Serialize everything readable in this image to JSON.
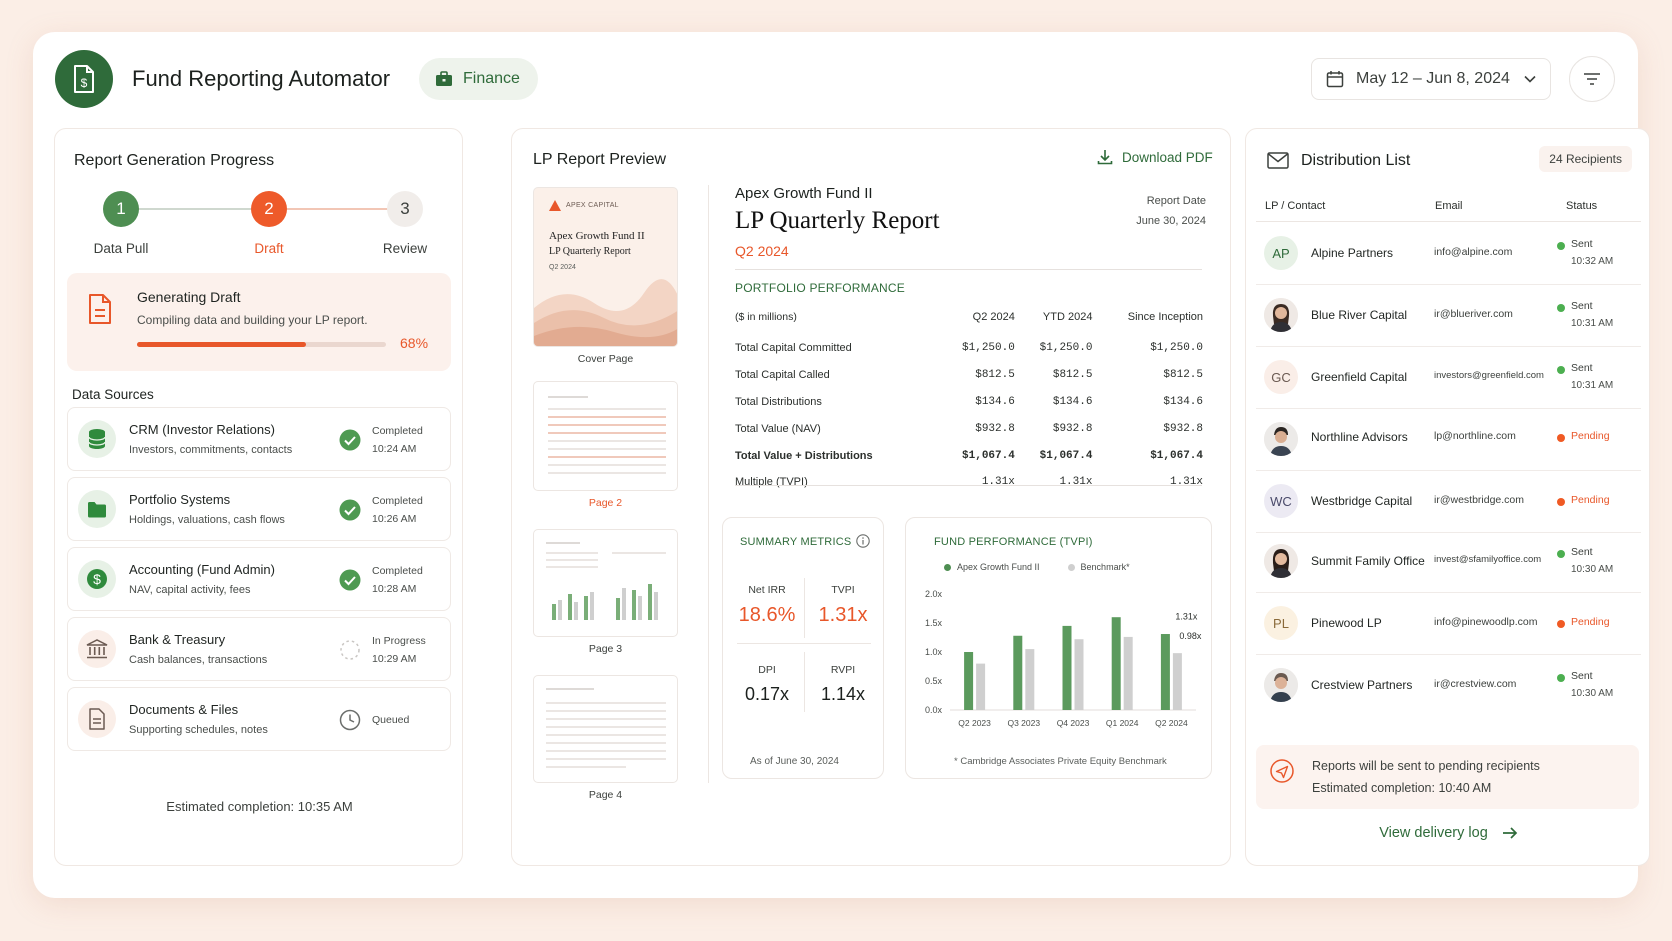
{
  "header": {
    "app_title": "Fund Reporting Automator",
    "logo_icon": "dollar-document-icon",
    "category_label": "Finance",
    "date_range": "May 12 – Jun 8, 2024"
  },
  "left": {
    "title": "Report Generation Progress",
    "steps": [
      {
        "num": "1",
        "label": "Data Pull",
        "state": "done"
      },
      {
        "num": "2",
        "label": "Draft",
        "state": "active"
      },
      {
        "num": "3",
        "label": "Review",
        "state": "pending"
      }
    ],
    "generating": {
      "title": "Generating Draft",
      "subtitle": "Compiling data and building your LP report.",
      "progress": 0.68,
      "pct_label": "68%"
    },
    "data_sources_heading": "Data Sources",
    "sources": [
      {
        "name": "CRM (Investor Relations)",
        "desc": "Investors, commitments, contacts",
        "status": "Completed",
        "time": "10:24 AM",
        "icon": "database-icon"
      },
      {
        "name": "Portfolio Systems",
        "desc": "Holdings, valuations, cash flows",
        "status": "Completed",
        "time": "10:26 AM",
        "icon": "folder-icon"
      },
      {
        "name": "Accounting (Fund Admin)",
        "desc": "NAV, capital activity, fees",
        "status": "Completed",
        "time": "10:28 AM",
        "icon": "dollar-icon"
      },
      {
        "name": "Bank & Treasury",
        "desc": "Cash balances, transactions",
        "status": "In Progress",
        "time": "10:29 AM",
        "icon": "bank-icon"
      },
      {
        "name": "Documents & Files",
        "desc": "Supporting schedules, notes",
        "status": "Queued",
        "time": "",
        "icon": "document-icon"
      }
    ],
    "estimated": "Estimated completion: 10:35 AM"
  },
  "middle": {
    "title": "LP Report Preview",
    "download_label": "Download PDF",
    "thumbs": {
      "cover_brand": "APEX CAPITAL",
      "cover_title_1": "Apex Growth Fund II",
      "cover_title_2": "LP Quarterly Report",
      "cover_quarter": "Q2 2024",
      "labels": [
        "Cover Page",
        "Page 2",
        "Page 3",
        "Page 4"
      ]
    },
    "report": {
      "fund_name": "Apex Growth Fund II",
      "title": "LP Quarterly Report",
      "quarter": "Q2 2024",
      "date_label": "Report Date",
      "date": "June 30, 2024",
      "portfolio_title": "PORTFOLIO PERFORMANCE",
      "table_headers": [
        "($ in millions)",
        "Q2 2024",
        "YTD 2024",
        "Since Inception"
      ],
      "table_rows": [
        [
          "Total Capital Committed",
          "$1,250.0",
          "$1,250.0",
          "$1,250.0"
        ],
        [
          "Total Capital Called",
          "$812.5",
          "$812.5",
          "$812.5"
        ],
        [
          "Total Distributions",
          "$134.6",
          "$134.6",
          "$134.6"
        ],
        [
          "Total Value (NAV)",
          "$932.8",
          "$932.8",
          "$932.8"
        ],
        [
          "Total Value + Distributions",
          "$1,067.4",
          "$1,067.4",
          "$1,067.4"
        ],
        [
          "Multiple (TVPI)",
          "1.31x",
          "1.31x",
          "1.31x"
        ]
      ]
    },
    "summary": {
      "title": "SUMMARY METRICS",
      "metrics": [
        {
          "label": "Net IRR",
          "value": "18.6%"
        },
        {
          "label": "TVPI",
          "value": "1.31x"
        },
        {
          "label": "DPI",
          "value": "0.17x"
        },
        {
          "label": "RVPI",
          "value": "1.14x"
        }
      ],
      "footnote": "As of June 30, 2024"
    },
    "chart_data": {
      "type": "bar",
      "title": "FUND PERFORMANCE (TVPI)",
      "categories": [
        "Q2 2023",
        "Q3 2023",
        "Q4 2023",
        "Q1 2024",
        "Q2 2024"
      ],
      "series": [
        {
          "name": "Apex Growth Fund II",
          "color": "#5b9a5d",
          "values": [
            1.0,
            1.28,
            1.45,
            1.6,
            1.31
          ]
        },
        {
          "name": "Benchmark*",
          "color": "#cfcfcf",
          "values": [
            0.8,
            1.05,
            1.22,
            1.26,
            0.98
          ]
        }
      ],
      "yticks": [
        "0.0x",
        "0.5x",
        "1.0x",
        "1.5x",
        "2.0x"
      ],
      "ylim": [
        0,
        2.0
      ],
      "annotations": [
        "1.31x",
        "0.98x"
      ],
      "footnote": "* Cambridge Associates Private Equity Benchmark"
    }
  },
  "right": {
    "title": "Distribution List",
    "recipients": "24 Recipients",
    "headers": [
      "LP / Contact",
      "Email",
      "Status"
    ],
    "lps": [
      {
        "initials": "AP",
        "name": "Alpine Partners",
        "email": "info@alpine.com",
        "status": "Sent",
        "time": "10:32 AM",
        "photo": false
      },
      {
        "initials": "",
        "name": "Blue River Capital",
        "email": "ir@blueriver.com",
        "status": "Sent",
        "time": "10:31 AM",
        "photo": true
      },
      {
        "initials": "GC",
        "name": "Greenfield Capital",
        "email": "investors@greenfield.com",
        "status": "Sent",
        "time": "10:31 AM",
        "photo": false
      },
      {
        "initials": "",
        "name": "Northline Advisors",
        "email": "lp@northline.com",
        "status": "Pending",
        "time": "",
        "photo": true
      },
      {
        "initials": "WC",
        "name": "Westbridge Capital",
        "email": "ir@westbridge.com",
        "status": "Pending",
        "time": "",
        "photo": false
      },
      {
        "initials": "",
        "name": "Summit Family Office",
        "email": "invest@sfamilyoffice.com",
        "status": "Sent",
        "time": "10:30 AM",
        "photo": true
      },
      {
        "initials": "PL",
        "name": "Pinewood LP",
        "email": "info@pinewoodlp.com",
        "status": "Pending",
        "time": "",
        "photo": false
      },
      {
        "initials": "",
        "name": "Crestview Partners",
        "email": "ir@crestview.com",
        "status": "Sent",
        "time": "10:30 AM",
        "photo": true
      }
    ],
    "note_line1": "Reports will be sent to pending recipients",
    "note_line2": "Estimated completion: 10:40 AM",
    "view_log": "View delivery log"
  },
  "colors": {
    "brand_green": "#2f6b3a",
    "accent_orange": "#e8572a",
    "sent_green": "#4caf50",
    "pending_orange": "#f05a24"
  }
}
